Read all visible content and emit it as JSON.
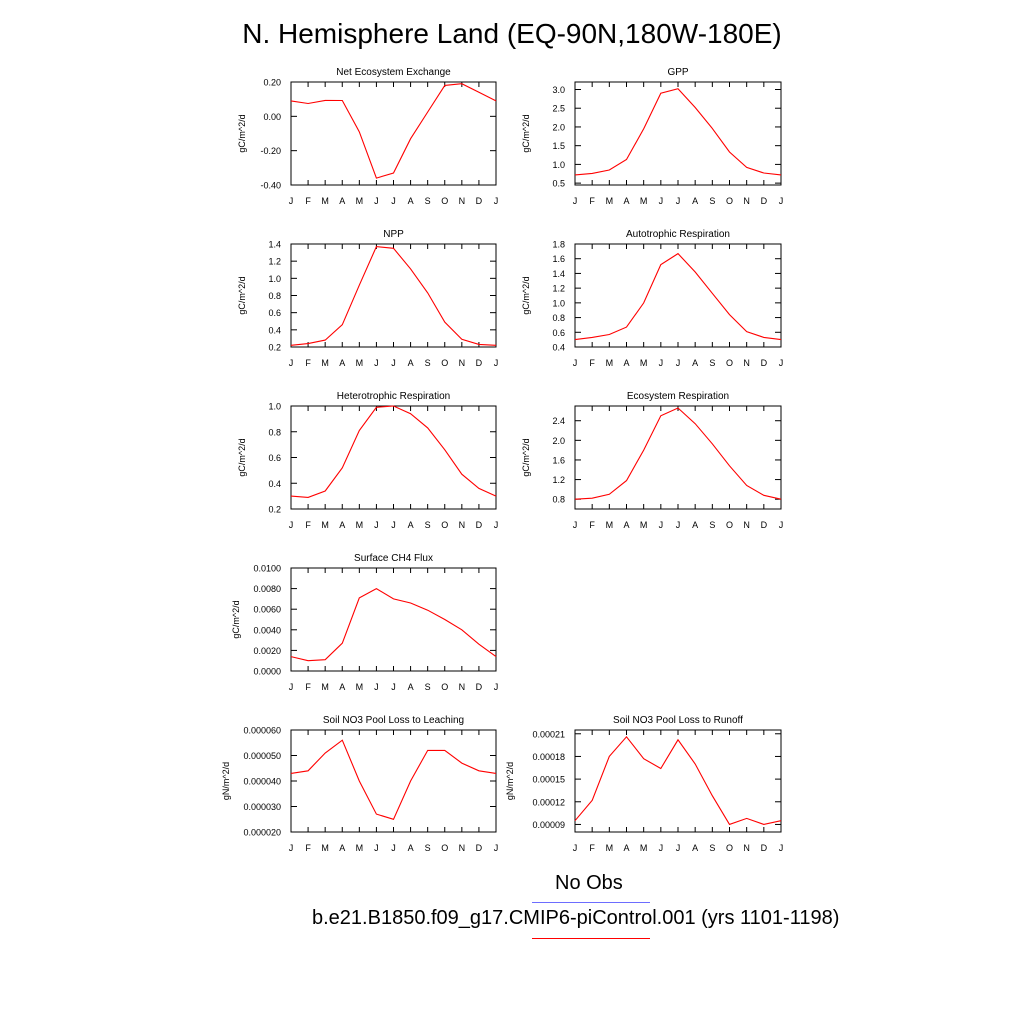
{
  "title": "N. Hemisphere Land (EQ-90N,180W-180E)",
  "months": [
    "J",
    "F",
    "M",
    "A",
    "M",
    "J",
    "J",
    "A",
    "S",
    "O",
    "N",
    "D",
    "J"
  ],
  "legend": {
    "obs_label": "No Obs",
    "obs_color": "#6d6dff",
    "model_label": "b.e21.B1850.f09_g17.CMIP6-piControl.001 (yrs 1101-1198)",
    "model_color": "#ff0000"
  },
  "chart_data": [
    {
      "type": "line",
      "title": "Net Ecosystem Exchange",
      "ylabel": "gC/m^2/d",
      "ylim": [
        -0.4,
        0.2
      ],
      "yticks": [
        "0.20",
        "0.00",
        "-0.20",
        "-0.40"
      ],
      "ytick_values": [
        0.2,
        0.0,
        -0.2,
        -0.4
      ],
      "series": [
        {
          "values": [
            0.09,
            0.075,
            0.093,
            0.092,
            -0.09,
            -0.36,
            -0.33,
            -0.13,
            0.025,
            0.18,
            0.19,
            0.14,
            0.09
          ]
        }
      ]
    },
    {
      "type": "line",
      "title": "GPP",
      "ylabel": "gC/m^2/d",
      "ylim": [
        0.45,
        3.2
      ],
      "yticks": [
        "3.0",
        "2.5",
        "2.0",
        "1.5",
        "1.0",
        "0.5"
      ],
      "ytick_values": [
        3.0,
        2.5,
        2.0,
        1.5,
        1.0,
        0.5
      ],
      "series": [
        {
          "values": [
            0.72,
            0.76,
            0.85,
            1.13,
            1.95,
            2.9,
            3.02,
            2.52,
            1.96,
            1.33,
            0.92,
            0.77,
            0.72
          ]
        }
      ]
    },
    {
      "type": "line",
      "title": "NPP",
      "ylabel": "gC/m^2/d",
      "ylim": [
        0.2,
        1.4
      ],
      "yticks": [
        "1.4",
        "1.2",
        "1.0",
        "0.8",
        "0.6",
        "0.4",
        "0.2"
      ],
      "ytick_values": [
        1.4,
        1.2,
        1.0,
        0.8,
        0.6,
        0.4,
        0.2
      ],
      "series": [
        {
          "values": [
            0.22,
            0.24,
            0.28,
            0.46,
            0.92,
            1.37,
            1.35,
            1.11,
            0.83,
            0.49,
            0.29,
            0.23,
            0.22
          ]
        }
      ]
    },
    {
      "type": "line",
      "title": "Autotrophic Respiration",
      "ylabel": "gC/m^2/d",
      "ylim": [
        0.4,
        1.8
      ],
      "yticks": [
        "1.8",
        "1.6",
        "1.4",
        "1.2",
        "1.0",
        "0.8",
        "0.6",
        "0.4"
      ],
      "ytick_values": [
        1.8,
        1.6,
        1.4,
        1.2,
        1.0,
        0.8,
        0.6,
        0.4
      ],
      "series": [
        {
          "values": [
            0.5,
            0.53,
            0.57,
            0.67,
            1.0,
            1.52,
            1.67,
            1.42,
            1.13,
            0.84,
            0.61,
            0.53,
            0.5
          ]
        }
      ]
    },
    {
      "type": "line",
      "title": "Heterotrophic Respiration",
      "ylabel": "gC/m^2/d",
      "ylim": [
        0.2,
        1.0
      ],
      "yticks": [
        "1.0",
        "0.8",
        "0.6",
        "0.4",
        "0.2"
      ],
      "ytick_values": [
        1.0,
        0.8,
        0.6,
        0.4,
        0.2
      ],
      "series": [
        {
          "values": [
            0.3,
            0.29,
            0.34,
            0.52,
            0.81,
            0.99,
            1.0,
            0.94,
            0.83,
            0.66,
            0.47,
            0.36,
            0.3
          ]
        }
      ]
    },
    {
      "type": "line",
      "title": "Ecosystem Respiration",
      "ylabel": "gC/m^2/d",
      "ylim": [
        0.6,
        2.7
      ],
      "yticks": [
        "2.4",
        "2.0",
        "1.6",
        "1.2",
        "0.8"
      ],
      "ytick_values": [
        2.4,
        2.0,
        1.6,
        1.2,
        0.8
      ],
      "series": [
        {
          "values": [
            0.8,
            0.82,
            0.9,
            1.18,
            1.8,
            2.5,
            2.66,
            2.34,
            1.93,
            1.48,
            1.08,
            0.88,
            0.8
          ]
        }
      ]
    },
    {
      "type": "line",
      "title": "Surface CH4 Flux",
      "ylabel": "gC/m^2/d",
      "ylim": [
        0.0,
        0.01
      ],
      "yticks": [
        "0.0100",
        "0.0080",
        "0.0060",
        "0.0040",
        "0.0020",
        "0.0000"
      ],
      "ytick_values": [
        0.01,
        0.008,
        0.006,
        0.004,
        0.002,
        0.0
      ],
      "series": [
        {
          "values": [
            0.0014,
            0.001,
            0.0011,
            0.0027,
            0.0071,
            0.008,
            0.007,
            0.0066,
            0.0059,
            0.005,
            0.004,
            0.0026,
            0.0014
          ]
        }
      ]
    },
    {
      "type": "line",
      "title": "Soil NO3 Pool Loss to Leaching",
      "ylabel": "gN/m^2/d",
      "ylim": [
        2e-05,
        6e-05
      ],
      "yticks": [
        "0.000060",
        "0.000050",
        "0.000040",
        "0.000030",
        "0.000020"
      ],
      "ytick_values": [
        6e-05,
        5e-05,
        4e-05,
        3e-05,
        2e-05
      ],
      "series": [
        {
          "values": [
            4.3e-05,
            4.4e-05,
            5.1e-05,
            5.6e-05,
            4e-05,
            2.7e-05,
            2.5e-05,
            4e-05,
            5.2e-05,
            5.2e-05,
            4.7e-05,
            4.4e-05,
            4.3e-05
          ]
        }
      ]
    },
    {
      "type": "line",
      "title": "Soil NO3 Pool Loss to Runoff",
      "ylabel": "gN/m^2/d",
      "ylim": [
        8e-05,
        0.000215
      ],
      "yticks": [
        "0.00021",
        "0.00018",
        "0.00015",
        "0.00012",
        "0.00009"
      ],
      "ytick_values": [
        0.00021,
        0.00018,
        0.00015,
        0.00012,
        9e-05
      ],
      "series": [
        {
          "values": [
            9.5e-05,
            0.000122,
            0.00018,
            0.000206,
            0.000177,
            0.000164,
            0.000202,
            0.00017,
            0.000128,
            9e-05,
            9.8e-05,
            9e-05,
            9.5e-05
          ]
        }
      ]
    }
  ]
}
